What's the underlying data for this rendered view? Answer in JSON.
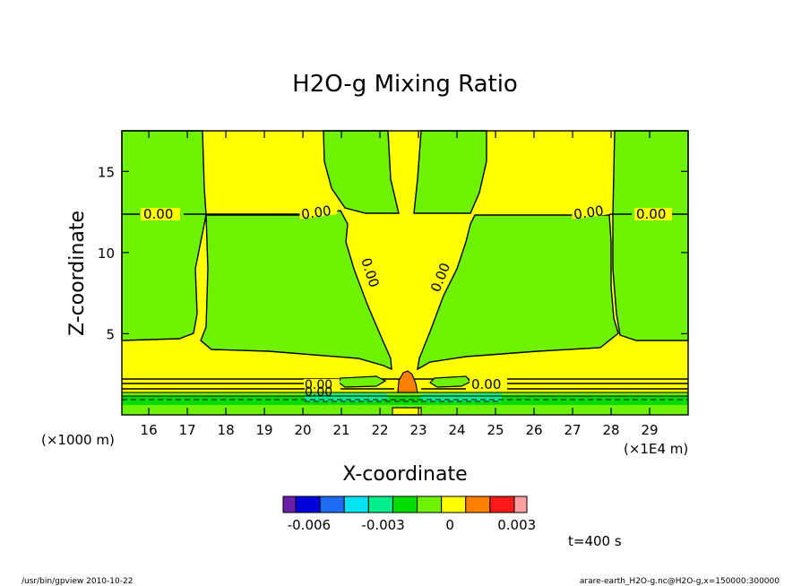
{
  "chart_data": {
    "type": "heatmap",
    "subtype": "filled-contour",
    "title": "H2O-g Mixing Ratio",
    "xlabel": "X-coordinate",
    "ylabel": "Z-coordinate",
    "x_scale_label": "(×1E4 m)",
    "y_scale_label": "(×1000 m)",
    "xlim": [
      15.3,
      30
    ],
    "ylim": [
      0,
      17.5
    ],
    "x_ticks": [
      16,
      17,
      18,
      19,
      20,
      21,
      22,
      23,
      24,
      25,
      26,
      27,
      28,
      29
    ],
    "y_ticks": [
      5,
      10,
      15
    ],
    "contour_labels": [
      "0.00",
      "0.00",
      "0.00",
      "0.00",
      "0.00",
      "0.00",
      "0.00",
      "0.00",
      "0.00",
      "0.00"
    ],
    "colors": {
      "below_min": "#6b1fa8",
      "levels": [
        "#0000dd",
        "#1e6cf2",
        "#00e4f2",
        "#00ee8c",
        "#00dd00",
        "#6ef200",
        "#ffff00",
        "#ff8000",
        "#ff1a1a"
      ],
      "above_max": "#ffa0a0"
    },
    "colorbar_ticks": [
      "-0.006",
      "-0.003",
      "0",
      "0.003"
    ],
    "annotation": "t=400 s"
  },
  "footer": {
    "left": "/usr/bin/gpview  2010-10-22",
    "right": "arare-earth_H2O-g.nc@H2O-g,x=150000:300000"
  }
}
